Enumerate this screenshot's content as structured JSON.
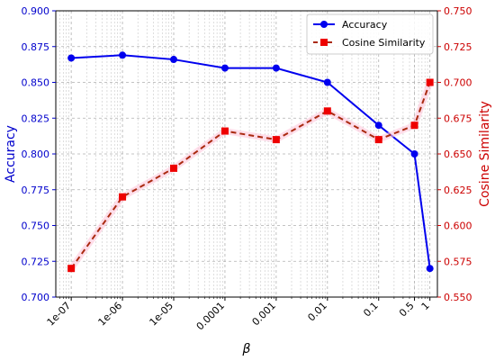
{
  "chart_data": {
    "type": "line",
    "title": "",
    "xlabel": "β",
    "x_scale": "log",
    "x": [
      1e-07,
      1e-06,
      1e-05,
      0.0001,
      0.001,
      0.01,
      0.1,
      0.5,
      1
    ],
    "x_tick_labels": [
      "1e-07",
      "1e-06",
      "1e-05",
      "0.0001",
      "0.001",
      "0.01",
      "0.1",
      "0.5",
      "1"
    ],
    "y_left": {
      "label": "Accuracy",
      "lim": [
        0.7,
        0.9
      ],
      "ticks": [
        "0.700",
        "0.725",
        "0.750",
        "0.775",
        "0.800",
        "0.825",
        "0.850",
        "0.875",
        "0.900"
      ],
      "color": "#0000cc"
    },
    "y_right": {
      "label": "Cosine Similarity",
      "lim": [
        0.55,
        0.75
      ],
      "ticks": [
        "0.550",
        "0.575",
        "0.600",
        "0.625",
        "0.650",
        "0.675",
        "0.700",
        "0.725",
        "0.750"
      ],
      "color": "#cc0000"
    },
    "series": [
      {
        "name": "Accuracy",
        "axis": "left",
        "style": "solid",
        "marker": "circle",
        "color": "#0000ee",
        "values": [
          0.867,
          0.869,
          0.866,
          0.86,
          0.86,
          0.85,
          0.82,
          0.8,
          0.72
        ]
      },
      {
        "name": "Cosine Similarity",
        "axis": "right",
        "style": "dashed",
        "marker": "square",
        "color": "#aa2a10",
        "marker_color": "#ee0000",
        "values": [
          0.57,
          0.62,
          0.64,
          0.666,
          0.66,
          0.68,
          0.66,
          0.67,
          0.7
        ]
      }
    ],
    "grid": true,
    "legend_position": "top-right"
  }
}
